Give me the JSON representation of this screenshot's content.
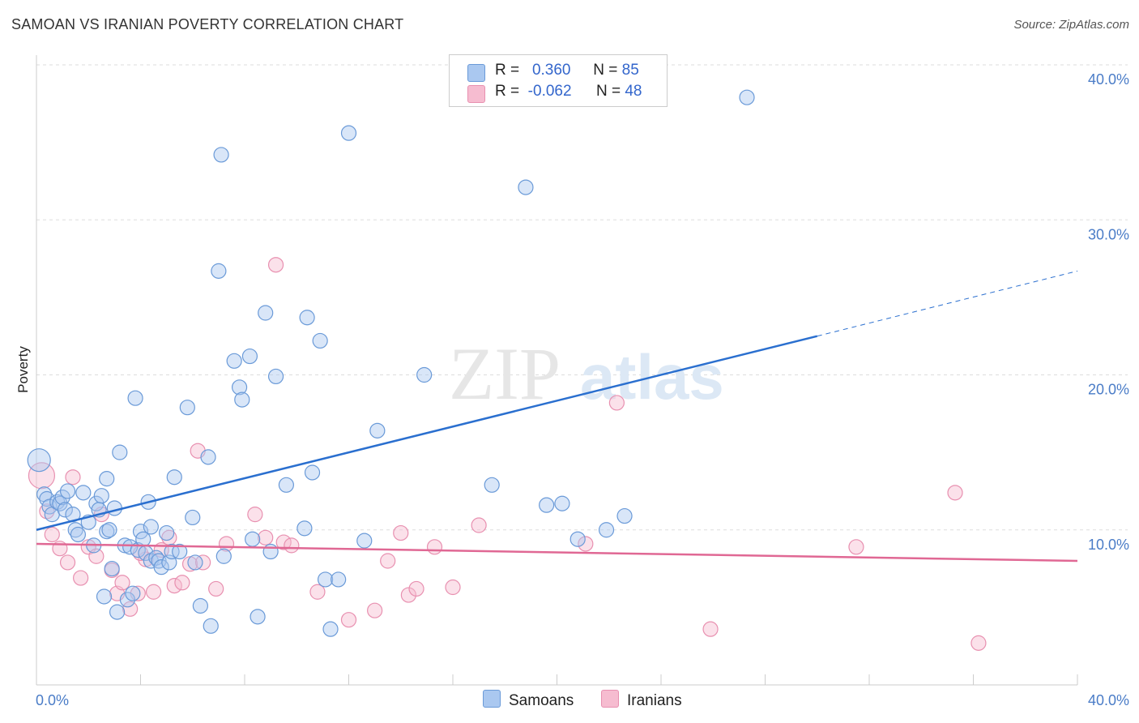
{
  "header": {
    "title": "SAMOAN VS IRANIAN POVERTY CORRELATION CHART",
    "source": "Source: ZipAtlas.com"
  },
  "legend": {
    "samoans": {
      "r_label": "R =",
      "r_value": "0.360",
      "n_label": "N =",
      "n_value": "85"
    },
    "iranians": {
      "r_label": "R =",
      "r_value": "-0.062",
      "n_label": "N =",
      "n_value": "48"
    }
  },
  "bottom_legend": {
    "samoans": "Samoans",
    "iranians": "Iranians"
  },
  "watermark": {
    "zip": "ZIP",
    "atlas": "atlas"
  },
  "colors": {
    "samoans_fill": "#aac8f0",
    "samoans_stroke": "#6a9ad8",
    "samoans_line": "#2a6fcf",
    "iranians_fill": "#f6bcd0",
    "iranians_stroke": "#e890b0",
    "iranians_line": "#e06894",
    "grid": "#dddddd",
    "tick_label": "#4a7cc7"
  },
  "chart_data": {
    "type": "scatter",
    "title": "SAMOAN VS IRANIAN POVERTY CORRELATION CHART",
    "xlabel": "",
    "ylabel": "Poverty",
    "xlim": [
      0,
      40
    ],
    "ylim": [
      0,
      40
    ],
    "x_tick_labels": [
      "0.0%",
      "40.0%"
    ],
    "y_ticks": [
      10,
      20,
      30,
      40
    ],
    "y_tick_labels": [
      "10.0%",
      "20.0%",
      "30.0%",
      "40.0%"
    ],
    "grid": true,
    "legend_position": "top-center",
    "series": [
      {
        "name": "Samoans",
        "r": 0.36,
        "n": 85,
        "trend": {
          "x0": 0,
          "y0": 10.0,
          "x1": 30,
          "y1": 22.5,
          "dash_to_x": 40,
          "dash_to_y": 26.7
        },
        "points": [
          [
            0.1,
            14.5
          ],
          [
            0.3,
            12.3
          ],
          [
            0.4,
            12.0
          ],
          [
            0.5,
            11.5
          ],
          [
            0.6,
            11.0
          ],
          [
            0.8,
            11.8
          ],
          [
            0.9,
            11.7
          ],
          [
            1.0,
            12.1
          ],
          [
            1.1,
            11.3
          ],
          [
            1.2,
            12.5
          ],
          [
            1.4,
            11.0
          ],
          [
            1.5,
            10.0
          ],
          [
            1.6,
            9.7
          ],
          [
            1.8,
            12.4
          ],
          [
            2.0,
            10.5
          ],
          [
            2.2,
            9.0
          ],
          [
            2.3,
            11.7
          ],
          [
            2.4,
            11.3
          ],
          [
            2.5,
            12.2
          ],
          [
            2.6,
            5.7
          ],
          [
            2.7,
            9.9
          ],
          [
            2.7,
            13.3
          ],
          [
            2.9,
            7.5
          ],
          [
            3.0,
            11.4
          ],
          [
            3.1,
            4.7
          ],
          [
            3.2,
            15.0
          ],
          [
            3.4,
            9.0
          ],
          [
            3.5,
            5.5
          ],
          [
            3.6,
            8.9
          ],
          [
            3.7,
            5.9
          ],
          [
            3.8,
            18.5
          ],
          [
            3.9,
            8.7
          ],
          [
            4.0,
            9.9
          ],
          [
            4.1,
            9.4
          ],
          [
            4.2,
            8.5
          ],
          [
            4.3,
            11.8
          ],
          [
            4.4,
            8.0
          ],
          [
            4.6,
            8.2
          ],
          [
            4.7,
            8.0
          ],
          [
            4.8,
            7.6
          ],
          [
            5.0,
            9.8
          ],
          [
            5.1,
            7.9
          ],
          [
            5.2,
            8.6
          ],
          [
            5.3,
            13.4
          ],
          [
            5.5,
            8.6
          ],
          [
            5.8,
            17.9
          ],
          [
            6.1,
            7.9
          ],
          [
            6.3,
            5.1
          ],
          [
            6.6,
            14.7
          ],
          [
            6.7,
            3.8
          ],
          [
            7.0,
            26.7
          ],
          [
            7.1,
            34.2
          ],
          [
            7.2,
            8.3
          ],
          [
            7.6,
            20.9
          ],
          [
            7.8,
            19.2
          ],
          [
            7.9,
            18.4
          ],
          [
            8.2,
            21.2
          ],
          [
            8.3,
            9.4
          ],
          [
            8.5,
            4.4
          ],
          [
            8.8,
            24.0
          ],
          [
            9.0,
            8.6
          ],
          [
            9.2,
            19.9
          ],
          [
            9.6,
            12.9
          ],
          [
            10.3,
            10.1
          ],
          [
            10.4,
            23.7
          ],
          [
            10.6,
            13.7
          ],
          [
            10.9,
            22.2
          ],
          [
            11.1,
            6.8
          ],
          [
            11.3,
            3.6
          ],
          [
            11.6,
            6.8
          ],
          [
            12.0,
            35.6
          ],
          [
            12.6,
            9.3
          ],
          [
            13.1,
            16.4
          ],
          [
            14.9,
            20.0
          ],
          [
            17.5,
            12.9
          ],
          [
            18.8,
            32.1
          ],
          [
            19.6,
            11.6
          ],
          [
            20.2,
            11.7
          ],
          [
            20.8,
            9.4
          ],
          [
            21.9,
            10.0
          ],
          [
            22.6,
            10.9
          ],
          [
            27.3,
            37.9
          ],
          [
            2.8,
            10.0
          ],
          [
            4.4,
            10.2
          ],
          [
            6.0,
            10.8
          ]
        ]
      },
      {
        "name": "Iranians",
        "r": -0.062,
        "n": 48,
        "trend": {
          "x0": 0,
          "y0": 9.1,
          "x1": 40,
          "y1": 8.0
        },
        "points": [
          [
            0.2,
            13.5
          ],
          [
            0.4,
            11.2
          ],
          [
            0.6,
            9.7
          ],
          [
            0.9,
            8.8
          ],
          [
            1.2,
            7.9
          ],
          [
            1.4,
            13.4
          ],
          [
            1.7,
            6.9
          ],
          [
            2.0,
            8.9
          ],
          [
            2.3,
            8.3
          ],
          [
            2.5,
            11.0
          ],
          [
            2.9,
            7.4
          ],
          [
            3.1,
            5.9
          ],
          [
            3.3,
            6.6
          ],
          [
            3.6,
            4.9
          ],
          [
            3.9,
            5.9
          ],
          [
            4.2,
            8.1
          ],
          [
            4.5,
            6.0
          ],
          [
            4.8,
            8.7
          ],
          [
            5.1,
            9.5
          ],
          [
            5.3,
            6.4
          ],
          [
            5.6,
            6.6
          ],
          [
            5.9,
            7.8
          ],
          [
            6.2,
            15.1
          ],
          [
            6.4,
            7.9
          ],
          [
            6.9,
            6.2
          ],
          [
            7.3,
            9.1
          ],
          [
            8.4,
            11.0
          ],
          [
            8.8,
            9.5
          ],
          [
            9.2,
            27.1
          ],
          [
            9.5,
            9.2
          ],
          [
            9.8,
            9.0
          ],
          [
            10.8,
            6.0
          ],
          [
            12.0,
            4.2
          ],
          [
            13.0,
            4.8
          ],
          [
            13.5,
            8.0
          ],
          [
            14.0,
            9.8
          ],
          [
            14.3,
            5.8
          ],
          [
            14.6,
            6.2
          ],
          [
            15.3,
            8.9
          ],
          [
            16.0,
            6.3
          ],
          [
            17.0,
            10.3
          ],
          [
            21.1,
            9.1
          ],
          [
            22.3,
            18.2
          ],
          [
            25.9,
            3.6
          ],
          [
            31.5,
            8.9
          ],
          [
            35.3,
            12.4
          ],
          [
            36.2,
            2.7
          ],
          [
            4.0,
            8.5
          ]
        ]
      }
    ]
  }
}
